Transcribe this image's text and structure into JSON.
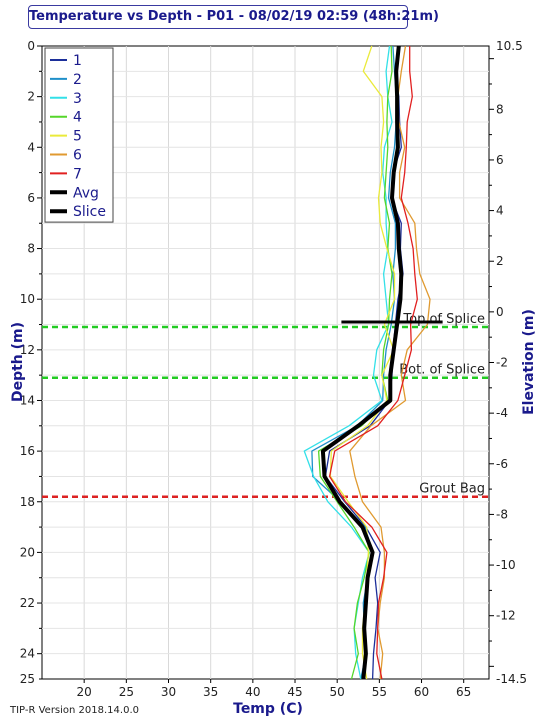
{
  "chart_data": {
    "type": "line",
    "title": "Temperature vs Depth - P01 - 08/02/19 02:59 (48h:21m)",
    "xlabel": "Temp (C)",
    "ylabel": "Depth (m)",
    "y2label": "Elevation (m)",
    "xlim": [
      15,
      68
    ],
    "ylim": [
      0,
      25
    ],
    "y2lim": [
      10.5,
      -14.5
    ],
    "xticks": [
      20,
      25,
      30,
      35,
      40,
      45,
      50,
      55,
      60,
      65
    ],
    "yticks": [
      0,
      2,
      4,
      6,
      8,
      10,
      12,
      14,
      16,
      18,
      20,
      22,
      24,
      25
    ],
    "y2ticks_labeled": [
      "10.5",
      "8",
      "6",
      "4",
      "2",
      "0",
      "-2",
      "-4",
      "-6",
      "-8",
      "-10",
      "-12",
      "-14.5"
    ],
    "legend_placement": "top-left",
    "grid": true,
    "annotations": [
      {
        "text": "Top of Splice",
        "depth": 11.1,
        "color": "#22cc22"
      },
      {
        "text": "Bot. of Splice",
        "depth": 13.1,
        "color": "#22cc22"
      },
      {
        "text": "Grout Bag",
        "depth": 17.8,
        "color": "#dd2222"
      }
    ],
    "slice": {
      "name": "Slice",
      "depth": 10.9,
      "x_from": 50.5,
      "x_to": 62.5
    },
    "depth": [
      0,
      1,
      2,
      3,
      4,
      5,
      6,
      7,
      8,
      9,
      10,
      11,
      12,
      13,
      14,
      15,
      16,
      17,
      18,
      19,
      20,
      21,
      22,
      23,
      24,
      25
    ],
    "series": [
      {
        "name": "1",
        "color": "#1c2f9a",
        "values": [
          57.3,
          56.9,
          57.3,
          57.4,
          57.6,
          56.6,
          56.4,
          57.6,
          57.5,
          57.8,
          57.2,
          56.9,
          56.6,
          56.5,
          56.2,
          53.9,
          49.1,
          48.6,
          50.9,
          53.4,
          55.1,
          54.5,
          54.8,
          54.6,
          54.3,
          54.2
        ]
      },
      {
        "name": "2",
        "color": "#1f8fc9",
        "values": [
          56.6,
          56.8,
          57.0,
          57.0,
          56.8,
          56.3,
          56.1,
          56.9,
          56.9,
          56.6,
          56.8,
          56.4,
          55.8,
          55.5,
          55.4,
          52.4,
          47.0,
          47.1,
          50.4,
          53.3,
          54.2,
          53.6,
          53.1,
          53.2,
          53.4,
          52.8
        ]
      },
      {
        "name": "3",
        "color": "#33e0e8",
        "values": [
          56.2,
          55.8,
          56.0,
          56.5,
          55.6,
          55.4,
          55.8,
          55.8,
          56.0,
          55.5,
          55.8,
          56.1,
          54.7,
          54.3,
          55.3,
          51.4,
          46.1,
          47.2,
          48.9,
          51.7,
          53.8,
          53.0,
          52.5,
          52.0,
          52.2,
          52.8
        ]
      },
      {
        "name": "4",
        "color": "#55d62a",
        "values": [
          56.4,
          56.5,
          56.0,
          55.9,
          56.0,
          55.8,
          55.6,
          56.2,
          56.0,
          56.5,
          56.2,
          56.1,
          55.5,
          55.3,
          56.0,
          52.9,
          47.8,
          48.0,
          50.0,
          52.0,
          53.8,
          53.2,
          52.4,
          52.0,
          52.5,
          51.7
        ]
      },
      {
        "name": "5",
        "color": "#eaea3a",
        "values": [
          54.1,
          53.1,
          55.3,
          55.5,
          55.2,
          55.3,
          54.9,
          55.1,
          55.9,
          56.8,
          56.8,
          55.6,
          56.7,
          55.3,
          55.9,
          53.6,
          49.3,
          49.2,
          51.3,
          53.5,
          53.7,
          53.5,
          53.3,
          53.0,
          53.0,
          53.5
        ]
      },
      {
        "name": "6",
        "color": "#e09a30",
        "values": [
          58.1,
          57.6,
          57.2,
          57.3,
          58.0,
          57.4,
          57.4,
          59.2,
          59.4,
          59.8,
          61.0,
          60.7,
          58.3,
          57.6,
          58.1,
          54.0,
          51.5,
          52.1,
          53.0,
          55.2,
          55.6,
          55.6,
          55.1,
          54.8,
          55.4,
          55.1
        ]
      },
      {
        "name": "7",
        "color": "#e12020",
        "values": [
          58.6,
          58.6,
          58.9,
          58.3,
          58.2,
          58.0,
          57.6,
          58.4,
          59.0,
          59.2,
          59.5,
          58.7,
          58.8,
          58.0,
          57.2,
          54.8,
          49.7,
          49.1,
          51.0,
          54.1,
          55.9,
          55.5,
          54.9,
          54.8,
          54.7,
          55.3
        ]
      },
      {
        "name": "Avg",
        "color": "#000000",
        "values": [
          57.3,
          57.0,
          57.1,
          57.1,
          57.2,
          56.7,
          56.5,
          57.2,
          57.3,
          57.6,
          57.5,
          57.1,
          56.7,
          56.3,
          56.3,
          52.5,
          48.3,
          48.5,
          50.3,
          53.0,
          54.2,
          53.6,
          53.4,
          53.2,
          53.4,
          53.1
        ]
      },
      {
        "name": "Slice",
        "color": "#000000",
        "values": []
      }
    ]
  },
  "footer": {
    "version": "TIP-R Version 2018.14.0.0"
  }
}
